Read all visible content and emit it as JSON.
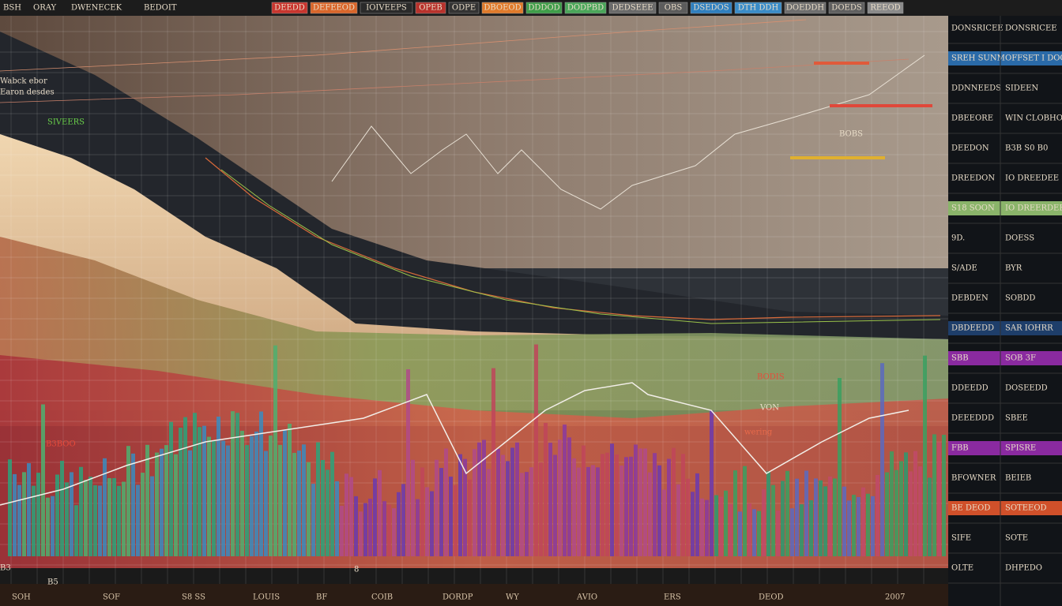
{
  "toolbar": {
    "left": [
      "BSH",
      "ORAY",
      "DWENECEK",
      "BEDOIT"
    ],
    "buttons": [
      {
        "label": "DEEDD",
        "color": "#c8352e"
      },
      {
        "label": "DEFEEOD",
        "color": "#d9662a"
      },
      {
        "label": "IOIVEEPS",
        "color": "#2a2a2a"
      },
      {
        "label": "OPEB",
        "color": "#b8322c"
      },
      {
        "label": "ODPE",
        "color": "#333333"
      },
      {
        "label": "DBOEOD",
        "color": "#e07a2a"
      },
      {
        "label": "DDDOD",
        "color": "#3f9e4a"
      },
      {
        "label": "DODPBD",
        "color": "#4aa65a"
      },
      {
        "label": "DEDSEEE",
        "color": "#6a6a6a"
      },
      {
        "label": "OBS",
        "color": "#5c5c5c"
      },
      {
        "label": "DSEDOS",
        "color": "#2f7fbf"
      },
      {
        "label": "DTH DDH",
        "color": "#3a8cc8"
      },
      {
        "label": "DOEDDH",
        "color": "#6e6e6e"
      },
      {
        "label": "DOEDS",
        "color": "#606060"
      },
      {
        "label": "REEOD",
        "color": "#8a8a8a"
      }
    ]
  },
  "chart_labels": [
    "Wabck ebor",
    "Earon desdes",
    "SIVEERS",
    "B3BOO",
    "B3",
    "B5",
    "8",
    "VON",
    "wering",
    "BOBS",
    "BODIS"
  ],
  "x_axis_labels": [
    "SOH",
    "SOF",
    "S8 SS",
    "LOUIS",
    "BF",
    "COIB",
    "DORDP",
    "WY",
    "AVIO",
    "ERS",
    "DEOD",
    "2007"
  ],
  "right_panel": {
    "rows": [
      [
        "DONSRICEE",
        "DONSRICEE"
      ],
      [
        "SREH SUNM",
        "OFFSET I DOCEEF"
      ],
      [
        "DDNNEEDS",
        "SIDEEN"
      ],
      [
        "DBEEORE",
        "WIN CLOBHO"
      ],
      [
        "DEEDON",
        "B3B  S0 B0"
      ],
      [
        "DREEDON",
        "IO DREEDEE"
      ],
      [
        "S18 SOON",
        "IO DREERDEE"
      ],
      [
        "9D.",
        "DOESS"
      ],
      [
        "S/ADE",
        "BYR"
      ],
      [
        "DEBDEN",
        "SOBDD"
      ],
      [
        "DBDEEDD",
        "SAR IOHRR"
      ],
      [
        "SBB",
        "SOB 3F"
      ],
      [
        "DDEEDD",
        "DOSEEDD"
      ],
      [
        "DEEEDDD",
        "SBEE"
      ],
      [
        "FBB",
        "SPISRE"
      ],
      [
        "BFOWNER",
        "BEIEB"
      ],
      [
        "BE DEOD",
        "SOTEEOD"
      ],
      [
        "SIFE",
        "SOTE"
      ],
      [
        "OLTE",
        "DHPEDO"
      ]
    ]
  }
}
